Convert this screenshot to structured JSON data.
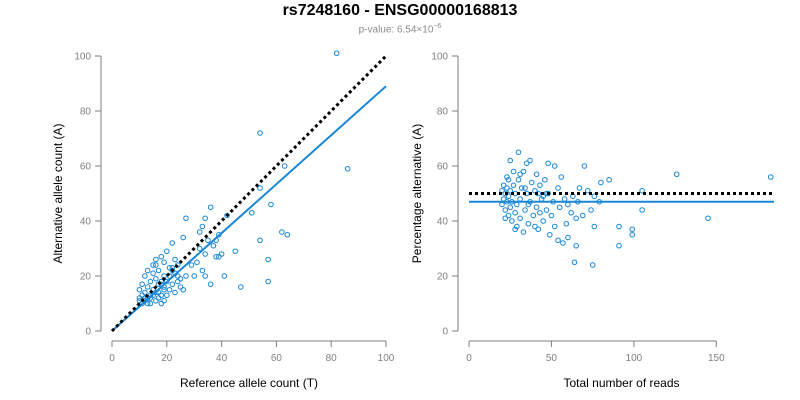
{
  "page": {
    "title": "rs7248160 - ENSG00000168813",
    "pvalue_label": "p-value: 6.54×10",
    "pvalue_exp": "−6"
  },
  "chart_data": [
    {
      "type": "scatter",
      "id": "left",
      "xlabel": "Reference allele count (T)",
      "ylabel": "Alternative allele count (A)",
      "xlim": [
        0,
        100
      ],
      "ylim": [
        0,
        100
      ],
      "xticks": [
        0,
        20,
        40,
        60,
        80,
        100
      ],
      "yticks": [
        0,
        20,
        40,
        60,
        80,
        100
      ],
      "fit_line": {
        "from": [
          0,
          0
        ],
        "to": [
          100,
          89
        ]
      },
      "reference_line": {
        "from": [
          0,
          0
        ],
        "to": [
          100,
          100
        ]
      },
      "points": [
        [
          82,
          101
        ],
        [
          54,
          72
        ],
        [
          86,
          59
        ],
        [
          63,
          60
        ],
        [
          58,
          46
        ],
        [
          54,
          52
        ],
        [
          51,
          43
        ],
        [
          62,
          36
        ],
        [
          64,
          35
        ],
        [
          54,
          33
        ],
        [
          57,
          26
        ],
        [
          57,
          18
        ],
        [
          47,
          16
        ],
        [
          45,
          29
        ],
        [
          40,
          28
        ],
        [
          41,
          20
        ],
        [
          39,
          27
        ],
        [
          38,
          27
        ],
        [
          36,
          17
        ],
        [
          42,
          42
        ],
        [
          36,
          45
        ],
        [
          34,
          41
        ],
        [
          33,
          38
        ],
        [
          32,
          36
        ],
        [
          35,
          33
        ],
        [
          39,
          35
        ],
        [
          38,
          33
        ],
        [
          37,
          31
        ],
        [
          32,
          30
        ],
        [
          34,
          28
        ],
        [
          31,
          25
        ],
        [
          33,
          22
        ],
        [
          30,
          20
        ],
        [
          34,
          20
        ],
        [
          27,
          41
        ],
        [
          26,
          34
        ],
        [
          29,
          24
        ],
        [
          27,
          20
        ],
        [
          22,
          32
        ],
        [
          20,
          29
        ],
        [
          23,
          26
        ],
        [
          24,
          24
        ],
        [
          22,
          22
        ],
        [
          21,
          20
        ],
        [
          19,
          20
        ],
        [
          25,
          19
        ],
        [
          20,
          18
        ],
        [
          18,
          17
        ],
        [
          22,
          17
        ],
        [
          19,
          15
        ],
        [
          17,
          14
        ],
        [
          20,
          13
        ],
        [
          16,
          24
        ],
        [
          15,
          21
        ],
        [
          16,
          19
        ],
        [
          14,
          18
        ],
        [
          17,
          17
        ],
        [
          13,
          16
        ],
        [
          15,
          15
        ],
        [
          12,
          14
        ],
        [
          14,
          13
        ],
        [
          13,
          12
        ],
        [
          12,
          11
        ],
        [
          11,
          13
        ],
        [
          10,
          12
        ],
        [
          11,
          10
        ],
        [
          13,
          10
        ],
        [
          14,
          10
        ],
        [
          16,
          11
        ],
        [
          17,
          12
        ],
        [
          18,
          13
        ],
        [
          10,
          15
        ],
        [
          11,
          17
        ],
        [
          12,
          20
        ],
        [
          13,
          22
        ],
        [
          15,
          24
        ],
        [
          16,
          26
        ],
        [
          18,
          27
        ],
        [
          19,
          25
        ],
        [
          21,
          23
        ],
        [
          23,
          21
        ],
        [
          24,
          18
        ],
        [
          25,
          16
        ],
        [
          26,
          15
        ],
        [
          21,
          15
        ],
        [
          23,
          14
        ],
        [
          18,
          10
        ],
        [
          19,
          11
        ],
        [
          10,
          11
        ],
        [
          12,
          12
        ],
        [
          14,
          12
        ],
        [
          15,
          13
        ],
        [
          16,
          14
        ],
        [
          18,
          18
        ],
        [
          24,
          20
        ],
        [
          22,
          23
        ],
        [
          17,
          22
        ],
        [
          19,
          16
        ]
      ]
    },
    {
      "type": "scatter",
      "id": "right",
      "xlabel": "Total number of reads",
      "ylabel": "Percentage alternative (A)",
      "xlim": [
        0,
        185
      ],
      "ylim": [
        0,
        100
      ],
      "xticks": [
        0,
        50,
        100,
        150
      ],
      "yticks": [
        0,
        20,
        40,
        60,
        80,
        100
      ],
      "fit_line": {
        "from": [
          0,
          47
        ],
        "to": [
          185,
          47
        ]
      },
      "reference_line": {
        "from": [
          0,
          50
        ],
        "to": [
          185,
          50
        ]
      },
      "points": [
        [
          183,
          56
        ],
        [
          145,
          41
        ],
        [
          126,
          57
        ],
        [
          105,
          44
        ],
        [
          105,
          51
        ],
        [
          99,
          37
        ],
        [
          99,
          35
        ],
        [
          91,
          38
        ],
        [
          91,
          31
        ],
        [
          85,
          55
        ],
        [
          80,
          54
        ],
        [
          79,
          47
        ],
        [
          76,
          49
        ],
        [
          76,
          38
        ],
        [
          75,
          24
        ],
        [
          74,
          44
        ],
        [
          72,
          51
        ],
        [
          70,
          60
        ],
        [
          69,
          42
        ],
        [
          67,
          52
        ],
        [
          66,
          47
        ],
        [
          65,
          41
        ],
        [
          65,
          31
        ],
        [
          64,
          25
        ],
        [
          63,
          49
        ],
        [
          62,
          43
        ],
        [
          60,
          46
        ],
        [
          59,
          39
        ],
        [
          57,
          32
        ],
        [
          56,
          56
        ],
        [
          55,
          45
        ],
        [
          54,
          52
        ],
        [
          52,
          60
        ],
        [
          51,
          47
        ],
        [
          50,
          42
        ],
        [
          49,
          35
        ],
        [
          48,
          61
        ],
        [
          48,
          50
        ],
        [
          47,
          44
        ],
        [
          46,
          55
        ],
        [
          45,
          40
        ],
        [
          44,
          48
        ],
        [
          43,
          53
        ],
        [
          42,
          37
        ],
        [
          41,
          57
        ],
        [
          41,
          45
        ],
        [
          40,
          51
        ],
        [
          39,
          42
        ],
        [
          38,
          54
        ],
        [
          37,
          47
        ],
        [
          36,
          39
        ],
        [
          35,
          61
        ],
        [
          35,
          50
        ],
        [
          34,
          44
        ],
        [
          33,
          58
        ],
        [
          33,
          36
        ],
        [
          32,
          52
        ],
        [
          31,
          48
        ],
        [
          31,
          41
        ],
        [
          30,
          55
        ],
        [
          30,
          65
        ],
        [
          29,
          46
        ],
        [
          29,
          38
        ],
        [
          28,
          50
        ],
        [
          28,
          43
        ],
        [
          27,
          53
        ],
        [
          27,
          58
        ],
        [
          26,
          47
        ],
        [
          26,
          40
        ],
        [
          25,
          51
        ],
        [
          25,
          62
        ],
        [
          25,
          45
        ],
        [
          24,
          49
        ],
        [
          24,
          55
        ],
        [
          24,
          42
        ],
        [
          23,
          52
        ],
        [
          23,
          47
        ],
        [
          23,
          56
        ],
        [
          22,
          44
        ],
        [
          22,
          50
        ],
        [
          22,
          41
        ],
        [
          21,
          53
        ],
        [
          21,
          48
        ],
        [
          20,
          46
        ],
        [
          20,
          51
        ],
        [
          40,
          38
        ],
        [
          60,
          34
        ],
        [
          52,
          38
        ],
        [
          54,
          33
        ],
        [
          45,
          49
        ],
        [
          37,
          62
        ],
        [
          43,
          43
        ],
        [
          28,
          37
        ],
        [
          34,
          52
        ],
        [
          31,
          57
        ],
        [
          47,
          50
        ],
        [
          58,
          48
        ],
        [
          36,
          46
        ],
        [
          42,
          50
        ]
      ]
    }
  ]
}
